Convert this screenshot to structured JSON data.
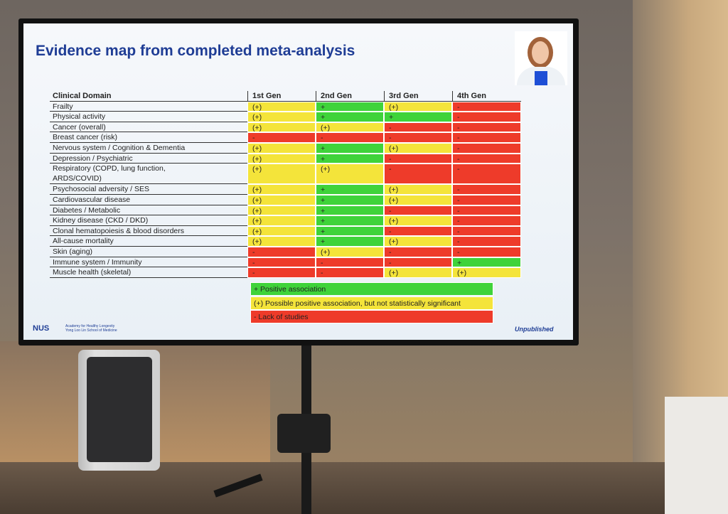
{
  "slide": {
    "title": "Evidence map from completed meta-analysis",
    "table": {
      "header": [
        "Clinical Domain",
        "1st Gen",
        "2nd Gen",
        "3rd Gen",
        "4th Gen"
      ],
      "rows": [
        {
          "domain": "Frailty",
          "cells": [
            "(+)",
            "+",
            "(+)",
            "-"
          ],
          "colors": [
            "#f4e43a",
            "#3fd33a",
            "#f4e43a",
            "#ee3b2a"
          ]
        },
        {
          "domain": "Physical activity",
          "cells": [
            "(+)",
            "+",
            "+",
            "-"
          ],
          "colors": [
            "#f4e43a",
            "#3fd33a",
            "#3fd33a",
            "#ee3b2a"
          ]
        },
        {
          "domain": "Cancer (overall)",
          "cells": [
            "(+)",
            "(+)",
            "-",
            "-"
          ],
          "colors": [
            "#f4e43a",
            "#f4e43a",
            "#ee3b2a",
            "#ee3b2a"
          ]
        },
        {
          "domain": "Breast cancer (risk)",
          "cells": [
            "-",
            "-",
            "-",
            "-"
          ],
          "colors": [
            "#ee3b2a",
            "#ee3b2a",
            "#ee3b2a",
            "#ee3b2a"
          ]
        },
        {
          "domain": "Nervous system / Cognition & Dementia",
          "cells": [
            "(+)",
            "+",
            "(+)",
            "-"
          ],
          "colors": [
            "#f4e43a",
            "#3fd33a",
            "#f4e43a",
            "#ee3b2a"
          ]
        },
        {
          "domain": "Depression / Psychiatric",
          "cells": [
            "(+)",
            "+",
            "-",
            "-"
          ],
          "colors": [
            "#f4e43a",
            "#3fd33a",
            "#ee3b2a",
            "#ee3b2a"
          ]
        },
        {
          "domain": "Respiratory (COPD, lung function, ARDS/COVID)",
          "cells": [
            "(+)",
            "(+)",
            "-",
            "-"
          ],
          "colors": [
            "#f4e43a",
            "#f4e43a",
            "#ee3b2a",
            "#ee3b2a"
          ]
        },
        {
          "domain": "Psychosocial adversity / SES",
          "cells": [
            "(+)",
            "+",
            "(+)",
            "-"
          ],
          "colors": [
            "#f4e43a",
            "#3fd33a",
            "#f4e43a",
            "#ee3b2a"
          ]
        },
        {
          "domain": "Cardiovascular disease",
          "cells": [
            "(+)",
            "+",
            "(+)",
            "-"
          ],
          "colors": [
            "#f4e43a",
            "#3fd33a",
            "#f4e43a",
            "#ee3b2a"
          ]
        },
        {
          "domain": "Diabetes / Metabolic",
          "cells": [
            "(+)",
            "+",
            "-",
            "-"
          ],
          "colors": [
            "#f4e43a",
            "#3fd33a",
            "#ee3b2a",
            "#ee3b2a"
          ]
        },
        {
          "domain": "Kidney disease (CKD / DKD)",
          "cells": [
            "(+)",
            "+",
            "(+)",
            "-"
          ],
          "colors": [
            "#f4e43a",
            "#3fd33a",
            "#f4e43a",
            "#ee3b2a"
          ]
        },
        {
          "domain": "Clonal hematopoiesis & blood disorders",
          "cells": [
            "(+)",
            "+",
            "-",
            "-"
          ],
          "colors": [
            "#f4e43a",
            "#3fd33a",
            "#ee3b2a",
            "#ee3b2a"
          ]
        },
        {
          "domain": "All-cause mortality",
          "cells": [
            "(+)",
            "+",
            "(+)",
            "-"
          ],
          "colors": [
            "#f4e43a",
            "#3fd33a",
            "#f4e43a",
            "#ee3b2a"
          ]
        },
        {
          "domain": "Skin (aging)",
          "cells": [
            "-",
            "(+)",
            "-",
            "-"
          ],
          "colors": [
            "#ee3b2a",
            "#f4e43a",
            "#ee3b2a",
            "#ee3b2a"
          ]
        },
        {
          "domain": "Immune system / Immunity",
          "cells": [
            "-",
            "-",
            "-",
            "+"
          ],
          "colors": [
            "#ee3b2a",
            "#ee3b2a",
            "#ee3b2a",
            "#3fd33a"
          ]
        },
        {
          "domain": "Muscle health (skeletal)",
          "cells": [
            "-",
            "-",
            "(+)",
            "(+)"
          ],
          "colors": [
            "#ee3b2a",
            "#ee3b2a",
            "#f4e43a",
            "#f4e43a"
          ]
        }
      ]
    },
    "legend": [
      {
        "label": "+ Positive association",
        "color": "#3fd33a"
      },
      {
        "label": "(+) Possible positive association, but not statistically significant",
        "color": "#f4e43a"
      },
      {
        "label": "- Lack of studies",
        "color": "#ee3b2a"
      }
    ],
    "footer": {
      "logo": "NUS",
      "institution": "Academy for Healthy Longevity",
      "school": "Yong Loo Lin School of Medicine",
      "note": "Unpublished"
    }
  }
}
